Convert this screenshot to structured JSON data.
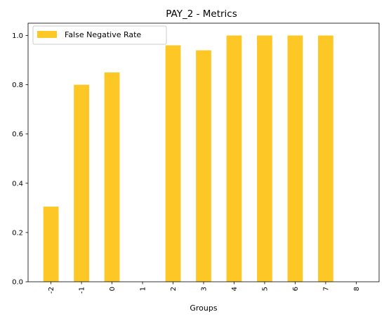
{
  "chart_data": {
    "type": "bar",
    "title": "PAY_2 - Metrics",
    "xlabel": "Groups",
    "ylabel": "",
    "categories": [
      "-2",
      "-1",
      "0",
      "1",
      "2",
      "3",
      "4",
      "5",
      "6",
      "7",
      "8"
    ],
    "series": [
      {
        "name": "False Negative Rate",
        "color": "#fdc726",
        "values": [
          0.305,
          0.8,
          0.85,
          0.0,
          0.96,
          0.94,
          1.0,
          1.0,
          1.0,
          1.0,
          0.0
        ]
      }
    ],
    "ylim": [
      0,
      1.05
    ],
    "yticks": [
      "0.0",
      "0.2",
      "0.4",
      "0.6",
      "0.8",
      "1.0"
    ],
    "grid": false,
    "legend_position": "top-left"
  }
}
